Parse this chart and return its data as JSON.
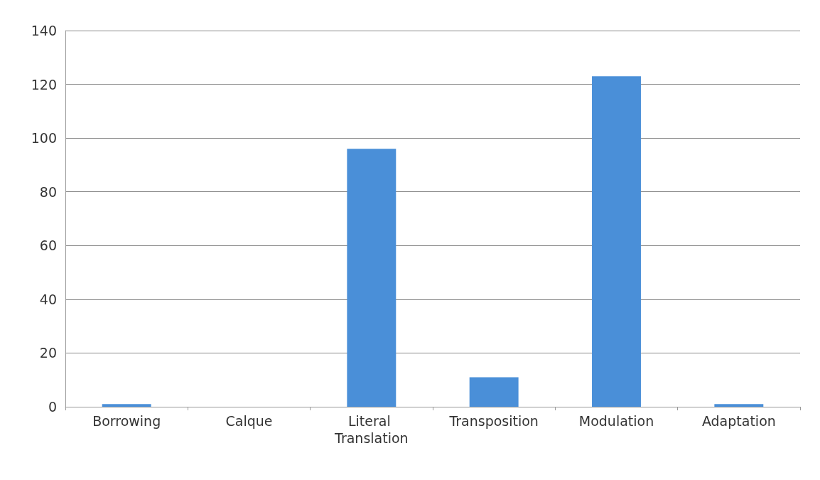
{
  "chart_data": {
    "type": "bar",
    "categories": [
      "Borrowing",
      "Calque",
      "Literal Translation",
      "Transposition",
      "Modulation",
      "Adaptation"
    ],
    "values": [
      1,
      0,
      96,
      11,
      123,
      1
    ],
    "color": "#4a8fd8",
    "ylim": [
      0,
      140
    ],
    "yticks": [
      0,
      20,
      40,
      60,
      80,
      100,
      120,
      140
    ],
    "grid": "y"
  }
}
